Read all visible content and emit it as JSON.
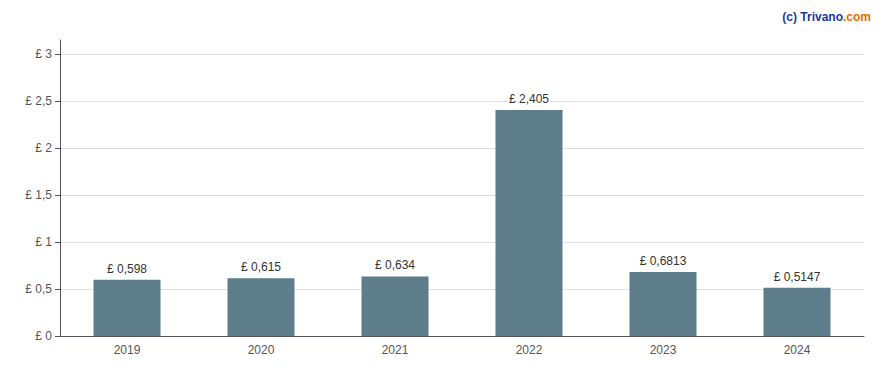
{
  "chart_data": {
    "type": "bar",
    "categories": [
      "2019",
      "2020",
      "2021",
      "2022",
      "2023",
      "2024"
    ],
    "values": [
      0.598,
      0.615,
      0.634,
      2.405,
      0.6813,
      0.5147
    ],
    "value_labels": [
      "£ 0,598",
      "£ 0,615",
      "£ 0,634",
      "£ 2,405",
      "£ 0,6813",
      "£ 0,5147"
    ],
    "data_labels": true,
    "color": "#5d7d8a",
    "ylim": [
      0,
      3.15
    ],
    "yticks": [
      {
        "value": 0,
        "label": "£ 0"
      },
      {
        "value": 0.5,
        "label": "£ 0,5"
      },
      {
        "value": 1.0,
        "label": "£ 1"
      },
      {
        "value": 1.5,
        "label": "£ 1,5"
      },
      {
        "value": 2.0,
        "label": "£ 2"
      },
      {
        "value": 2.5,
        "label": "£ 2,5"
      },
      {
        "value": 3.0,
        "label": "£ 3"
      }
    ],
    "grid": true,
    "annotations": [
      {
        "text": "(c) Trivano",
        "color": "#1a3a9c"
      },
      {
        "text": ".com",
        "color": "#e07000"
      }
    ]
  }
}
